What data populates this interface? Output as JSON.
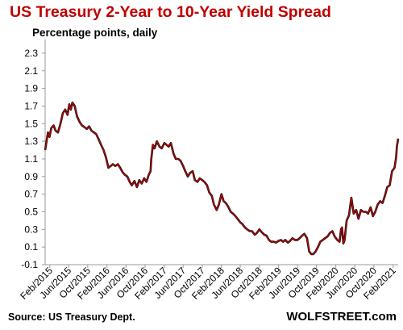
{
  "chart_data": {
    "type": "line",
    "title": "US Treasury 2-Year to 10-Year Yield Spread",
    "subtitle": "Percentage points, daily",
    "ylabel": "",
    "xlabel": "",
    "ylim": [
      -0.1,
      2.4
    ],
    "yticks": [
      -0.1,
      0.1,
      0.3,
      0.5,
      0.7,
      0.9,
      1.1,
      1.3,
      1.5,
      1.7,
      1.9,
      2.1,
      2.3
    ],
    "xlim": [
      "2015-01-02",
      "2021-03-05"
    ],
    "xtick_labels": [
      "Feb/2015",
      "Jun/2015",
      "Oct/2015",
      "Feb/2016",
      "Jun/2016",
      "Oct/2016",
      "Feb/2017",
      "Jun/2017",
      "Oct/2017",
      "Feb/2018",
      "Jun/2018",
      "Oct/2018",
      "Feb/2019",
      "Jun/2019",
      "Oct/2019",
      "Feb/2020",
      "Jun/2020",
      "Oct/2020",
      "Feb/2021"
    ],
    "xtick_dates": [
      "2015-02-01",
      "2015-06-01",
      "2015-10-01",
      "2016-02-01",
      "2016-06-01",
      "2016-10-01",
      "2017-02-01",
      "2017-06-01",
      "2017-10-01",
      "2018-02-01",
      "2018-06-01",
      "2018-10-01",
      "2019-02-01",
      "2019-06-01",
      "2019-10-01",
      "2020-02-01",
      "2020-06-01",
      "2020-10-01",
      "2021-02-01"
    ],
    "grid": false,
    "line_color": "#c00000",
    "series": [
      {
        "x": [
          "2015-01-02",
          "2015-01-20",
          "2015-01-30",
          "2015-02-10",
          "2015-02-25",
          "2015-03-10",
          "2015-03-25",
          "2015-04-10",
          "2015-04-25",
          "2015-05-10",
          "2015-05-25",
          "2015-06-05",
          "2015-06-15",
          "2015-06-25",
          "2015-07-10",
          "2015-07-25",
          "2015-08-10",
          "2015-08-25",
          "2015-09-10",
          "2015-09-25",
          "2015-10-10",
          "2015-10-25",
          "2015-11-10",
          "2015-11-25",
          "2015-12-10",
          "2015-12-25",
          "2016-01-10",
          "2016-01-25",
          "2016-02-10",
          "2016-02-25",
          "2016-03-10",
          "2016-03-25",
          "2016-04-10",
          "2016-04-25",
          "2016-05-10",
          "2016-05-25",
          "2016-06-10",
          "2016-06-25",
          "2016-07-08",
          "2016-07-25",
          "2016-08-10",
          "2016-08-25",
          "2016-09-10",
          "2016-09-25",
          "2016-10-10",
          "2016-10-25",
          "2016-11-05",
          "2016-11-10",
          "2016-11-20",
          "2016-12-01",
          "2016-12-15",
          "2017-01-01",
          "2017-01-15",
          "2017-02-01",
          "2017-02-15",
          "2017-03-01",
          "2017-03-15",
          "2017-04-01",
          "2017-04-15",
          "2017-05-01",
          "2017-05-15",
          "2017-06-01",
          "2017-06-15",
          "2017-07-01",
          "2017-07-15",
          "2017-08-01",
          "2017-08-15",
          "2017-09-01",
          "2017-09-15",
          "2017-10-01",
          "2017-10-15",
          "2017-11-01",
          "2017-11-15",
          "2017-12-01",
          "2017-12-15",
          "2018-01-01",
          "2018-01-15",
          "2018-02-01",
          "2018-02-15",
          "2018-03-01",
          "2018-03-15",
          "2018-04-01",
          "2018-04-15",
          "2018-05-01",
          "2018-05-15",
          "2018-06-01",
          "2018-06-15",
          "2018-07-01",
          "2018-07-15",
          "2018-08-01",
          "2018-08-15",
          "2018-09-01",
          "2018-09-15",
          "2018-10-01",
          "2018-10-15",
          "2018-11-01",
          "2018-11-15",
          "2018-12-01",
          "2018-12-15",
          "2019-01-01",
          "2019-01-15",
          "2019-02-01",
          "2019-02-15",
          "2019-03-01",
          "2019-03-15",
          "2019-04-01",
          "2019-04-15",
          "2019-05-01",
          "2019-05-15",
          "2019-06-01",
          "2019-06-15",
          "2019-07-01",
          "2019-07-15",
          "2019-08-01",
          "2019-08-15",
          "2019-08-28",
          "2019-09-10",
          "2019-09-25",
          "2019-10-10",
          "2019-10-25",
          "2019-11-10",
          "2019-11-25",
          "2019-12-10",
          "2019-12-25",
          "2020-01-10",
          "2020-01-25",
          "2020-02-10",
          "2020-02-25",
          "2020-03-05",
          "2020-03-12",
          "2020-03-20",
          "2020-03-28",
          "2020-04-10",
          "2020-04-25",
          "2020-05-10",
          "2020-05-25",
          "2020-06-10",
          "2020-06-25",
          "2020-07-10",
          "2020-07-25",
          "2020-08-10",
          "2020-08-25",
          "2020-09-10",
          "2020-09-25",
          "2020-10-10",
          "2020-10-25",
          "2020-11-10",
          "2020-11-25",
          "2020-12-10",
          "2020-12-25",
          "2021-01-10",
          "2021-01-25",
          "2021-02-10",
          "2021-02-20",
          "2021-02-25",
          "2021-03-05"
        ],
        "y": [
          1.2,
          1.4,
          1.35,
          1.45,
          1.48,
          1.42,
          1.4,
          1.5,
          1.62,
          1.66,
          1.6,
          1.72,
          1.66,
          1.74,
          1.7,
          1.58,
          1.52,
          1.48,
          1.46,
          1.44,
          1.47,
          1.42,
          1.4,
          1.38,
          1.32,
          1.26,
          1.2,
          1.12,
          1.0,
          1.02,
          1.04,
          1.02,
          1.04,
          1.0,
          0.95,
          0.92,
          0.9,
          0.84,
          0.8,
          0.85,
          0.78,
          0.86,
          0.82,
          0.88,
          0.84,
          0.92,
          0.96,
          1.1,
          1.26,
          1.22,
          1.3,
          1.24,
          1.22,
          1.28,
          1.26,
          1.24,
          1.28,
          1.16,
          1.1,
          1.1,
          1.08,
          1.02,
          0.96,
          0.9,
          0.94,
          0.96,
          0.86,
          0.84,
          0.88,
          0.86,
          0.84,
          0.8,
          0.72,
          0.68,
          0.58,
          0.52,
          0.58,
          0.7,
          0.62,
          0.6,
          0.56,
          0.5,
          0.48,
          0.45,
          0.42,
          0.38,
          0.36,
          0.32,
          0.3,
          0.28,
          0.28,
          0.24,
          0.26,
          0.3,
          0.27,
          0.24,
          0.23,
          0.18,
          0.16,
          0.16,
          0.15,
          0.17,
          0.18,
          0.16,
          0.18,
          0.15,
          0.17,
          0.2,
          0.18,
          0.18,
          0.2,
          0.23,
          0.25,
          0.2,
          0.05,
          0.02,
          0.02,
          0.05,
          0.1,
          0.16,
          0.18,
          0.2,
          0.22,
          0.26,
          0.28,
          0.22,
          0.18,
          0.16,
          0.3,
          0.32,
          0.14,
          0.18,
          0.4,
          0.46,
          0.66,
          0.48,
          0.52,
          0.42,
          0.52,
          0.5,
          0.5,
          0.48,
          0.55,
          0.45,
          0.5,
          0.58,
          0.62,
          0.6,
          0.68,
          0.78,
          0.8,
          0.96,
          1.0,
          1.12,
          1.24,
          1.33
        ]
      }
    ]
  },
  "source": "Source: US Treasury Dept.",
  "brand": "WOLFSTREET.com"
}
